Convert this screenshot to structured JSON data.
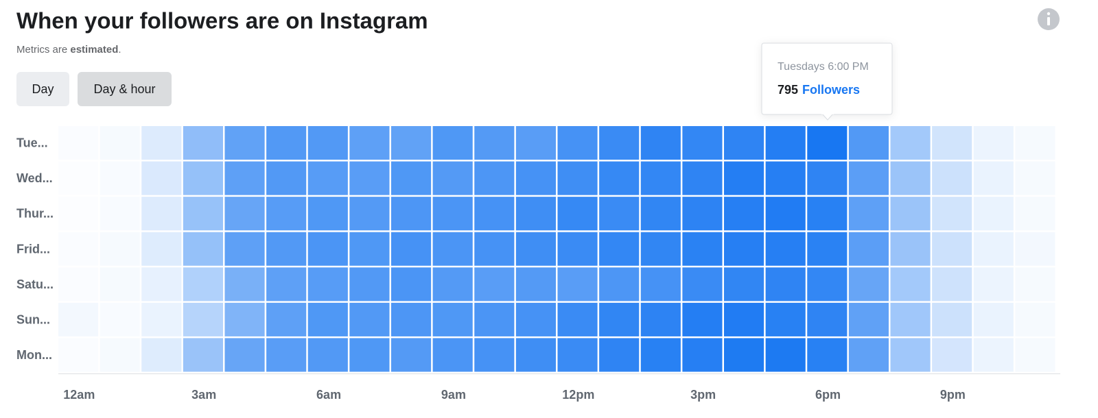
{
  "chart_data": {
    "type": "heatmap",
    "title": "When your followers are on Instagram",
    "subtitle_parts": [
      "Metrics are ",
      "estimated",
      "."
    ],
    "tabs": [
      "Day",
      "Day & hour"
    ],
    "active_tab": "Day & hour",
    "color": "#1877f2",
    "rows": [
      "Tue...",
      "Wed...",
      "Thur...",
      "Frid...",
      "Satu...",
      "Sun...",
      "Mon..."
    ],
    "categories": [
      "12am",
      null,
      null,
      "3am",
      null,
      null,
      "6am",
      null,
      null,
      "9am",
      null,
      null,
      "12pm",
      null,
      null,
      "3pm",
      null,
      null,
      "6pm",
      null,
      null,
      "9pm",
      null,
      null
    ],
    "values": [
      [
        16,
        32,
        119,
        382,
        541,
        596,
        596,
        556,
        541,
        604,
        588,
        572,
        636,
        676,
        716,
        700,
        716,
        755,
        795,
        596,
        318,
        159,
        64,
        32
      ],
      [
        8,
        24,
        127,
        366,
        556,
        596,
        580,
        572,
        604,
        588,
        612,
        636,
        660,
        692,
        700,
        716,
        756,
        748,
        716,
        564,
        342,
        175,
        72,
        32
      ],
      [
        8,
        24,
        119,
        358,
        524,
        580,
        604,
        588,
        612,
        620,
        636,
        660,
        692,
        676,
        708,
        724,
        748,
        764,
        740,
        556,
        342,
        159,
        72,
        32
      ],
      [
        16,
        32,
        111,
        366,
        556,
        596,
        620,
        604,
        636,
        620,
        636,
        660,
        676,
        700,
        708,
        732,
        748,
        748,
        732,
        564,
        350,
        175,
        72,
        40
      ],
      [
        16,
        32,
        80,
        270,
        461,
        556,
        580,
        596,
        620,
        588,
        572,
        588,
        572,
        612,
        636,
        676,
        708,
        716,
        700,
        524,
        318,
        167,
        64,
        32
      ],
      [
        40,
        24,
        72,
        254,
        437,
        556,
        604,
        596,
        612,
        604,
        620,
        636,
        676,
        708,
        724,
        756,
        764,
        740,
        716,
        548,
        326,
        175,
        72,
        32
      ],
      [
        16,
        32,
        111,
        350,
        524,
        572,
        596,
        604,
        588,
        620,
        636,
        660,
        676,
        716,
        740,
        748,
        772,
        780,
        740,
        548,
        326,
        151,
        64,
        32
      ]
    ],
    "tooltip": {
      "label": "Tuesdays 6:00 PM",
      "unit": "Followers"
    }
  }
}
